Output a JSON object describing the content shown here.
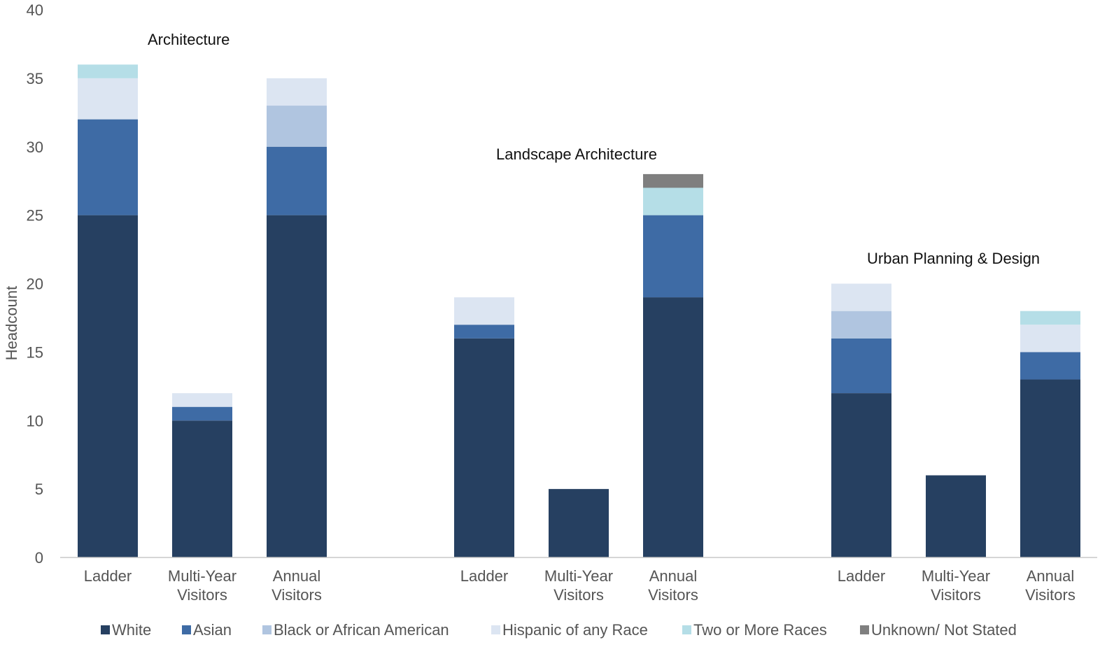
{
  "chart_data": {
    "type": "bar",
    "stacked": true,
    "ylabel": "Headcount",
    "ylim": [
      0,
      40
    ],
    "yticks": [
      0,
      5,
      10,
      15,
      20,
      25,
      30,
      35,
      40
    ],
    "grid": false,
    "legend_position": "bottom",
    "groups": [
      {
        "label": "Architecture",
        "categories": [
          {
            "label": [
              "Ladder"
            ],
            "values": {
              "White": 25,
              "Asian": 7,
              "Black or African American": 0,
              "Hispanic of any Race": 3,
              "Two or More Races": 1,
              "Unknown/  Not Stated": 0
            }
          },
          {
            "label": [
              "Multi-Year",
              "Visitors"
            ],
            "values": {
              "White": 10,
              "Asian": 1,
              "Black or African American": 0,
              "Hispanic of any Race": 1,
              "Two or More Races": 0,
              "Unknown/  Not Stated": 0
            }
          },
          {
            "label": [
              "Annual",
              "Visitors"
            ],
            "values": {
              "White": 25,
              "Asian": 5,
              "Black or African American": 3,
              "Hispanic of any Race": 2,
              "Two or More Races": 0,
              "Unknown/  Not Stated": 0
            }
          }
        ]
      },
      {
        "label": "Landscape Architecture",
        "categories": [
          {
            "label": [
              "Ladder"
            ],
            "values": {
              "White": 16,
              "Asian": 1,
              "Black or African American": 0,
              "Hispanic of any Race": 2,
              "Two or More Races": 0,
              "Unknown/  Not Stated": 0
            }
          },
          {
            "label": [
              "Multi-Year",
              "Visitors"
            ],
            "values": {
              "White": 5,
              "Asian": 0,
              "Black or African American": 0,
              "Hispanic of any Race": 0,
              "Two or More Races": 0,
              "Unknown/  Not Stated": 0
            }
          },
          {
            "label": [
              "Annual",
              "Visitors"
            ],
            "values": {
              "White": 19,
              "Asian": 6,
              "Black or African American": 0,
              "Hispanic of any Race": 0,
              "Two or More Races": 2,
              "Unknown/  Not Stated": 1
            }
          }
        ]
      },
      {
        "label": "Urban Planning & Design",
        "categories": [
          {
            "label": [
              "Ladder"
            ],
            "values": {
              "White": 12,
              "Asian": 4,
              "Black or African American": 2,
              "Hispanic of any Race": 2,
              "Two or More Races": 0,
              "Unknown/  Not Stated": 0
            }
          },
          {
            "label": [
              "Multi-Year",
              "Visitors"
            ],
            "values": {
              "White": 6,
              "Asian": 0,
              "Black or African American": 0,
              "Hispanic of any Race": 0,
              "Two or More Races": 0,
              "Unknown/  Not Stated": 0
            }
          },
          {
            "label": [
              "Annual",
              "Visitors"
            ],
            "values": {
              "White": 13,
              "Asian": 2,
              "Black or African American": 0,
              "Hispanic of any Race": 2,
              "Two or More Races": 1,
              "Unknown/  Not Stated": 0
            }
          }
        ]
      }
    ],
    "series": [
      {
        "name": "White",
        "color": "#264061"
      },
      {
        "name": "Asian",
        "color": "#3E6BA5"
      },
      {
        "name": "Black or African American",
        "color": "#B0C5E0"
      },
      {
        "name": "Hispanic of any Race",
        "color": "#DCE5F2"
      },
      {
        "name": "Two or More Races",
        "color": "#B5DEE7"
      },
      {
        "name": "Unknown/  Not Stated",
        "color": "#7F7F7F"
      }
    ]
  }
}
